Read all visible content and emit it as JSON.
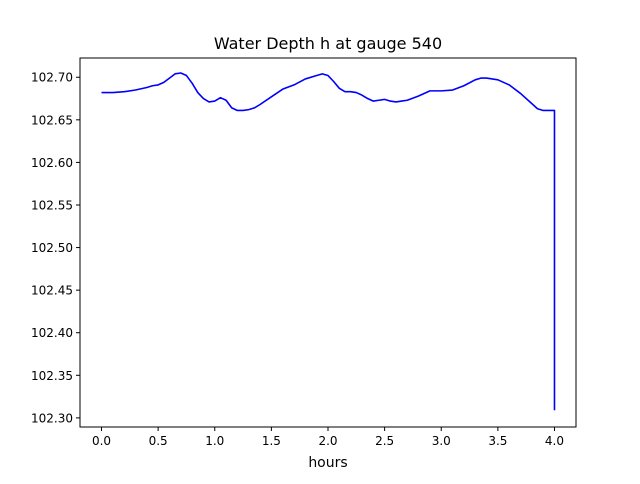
{
  "chart_data": {
    "type": "line",
    "title": "Water Depth h at gauge 540",
    "xlabel": "hours",
    "ylabel": "",
    "xlim": [
      -0.19,
      4.19
    ],
    "ylim": [
      102.2893,
      102.7226
    ],
    "x_ticks": [
      {
        "value": 0.0,
        "label": "0.0"
      },
      {
        "value": 0.5,
        "label": "0.5"
      },
      {
        "value": 1.0,
        "label": "1.0"
      },
      {
        "value": 1.5,
        "label": "1.5"
      },
      {
        "value": 2.0,
        "label": "2.0"
      },
      {
        "value": 2.5,
        "label": "2.5"
      },
      {
        "value": 3.0,
        "label": "3.0"
      },
      {
        "value": 3.5,
        "label": "3.5"
      },
      {
        "value": 4.0,
        "label": "4.0"
      }
    ],
    "y_ticks": [
      {
        "value": 102.3,
        "label": "102.30"
      },
      {
        "value": 102.35,
        "label": "102.35"
      },
      {
        "value": 102.4,
        "label": "102.40"
      },
      {
        "value": 102.45,
        "label": "102.45"
      },
      {
        "value": 102.5,
        "label": "102.50"
      },
      {
        "value": 102.55,
        "label": "102.55"
      },
      {
        "value": 102.6,
        "label": "102.60"
      },
      {
        "value": 102.65,
        "label": "102.65"
      },
      {
        "value": 102.7,
        "label": "102.70"
      }
    ],
    "grid": false,
    "legend": "none",
    "series": [
      {
        "color": "#0000ff",
        "x": [
          0.0,
          0.1,
          0.2,
          0.3,
          0.4,
          0.45,
          0.5,
          0.55,
          0.6,
          0.65,
          0.7,
          0.75,
          0.8,
          0.85,
          0.9,
          0.95,
          1.0,
          1.05,
          1.1,
          1.15,
          1.2,
          1.25,
          1.3,
          1.35,
          1.4,
          1.5,
          1.6,
          1.7,
          1.8,
          1.9,
          1.95,
          2.0,
          2.05,
          2.1,
          2.15,
          2.2,
          2.25,
          2.3,
          2.35,
          2.4,
          2.45,
          2.5,
          2.55,
          2.6,
          2.65,
          2.7,
          2.8,
          2.9,
          3.0,
          3.1,
          3.2,
          3.3,
          3.35,
          3.4,
          3.5,
          3.6,
          3.7,
          3.8,
          3.85,
          3.9,
          3.95,
          4.0,
          4.0
        ],
        "y": [
          102.682,
          102.682,
          102.683,
          102.685,
          102.688,
          102.69,
          102.691,
          102.694,
          102.699,
          102.704,
          102.705,
          102.702,
          102.693,
          102.682,
          102.675,
          102.671,
          102.672,
          102.676,
          102.673,
          102.664,
          102.661,
          102.661,
          102.662,
          102.664,
          102.668,
          102.677,
          102.686,
          102.691,
          102.698,
          102.702,
          102.704,
          102.702,
          102.695,
          102.687,
          102.683,
          102.683,
          102.682,
          102.679,
          102.675,
          102.672,
          102.673,
          102.674,
          102.672,
          102.671,
          102.672,
          102.673,
          102.678,
          102.684,
          102.684,
          102.685,
          102.69,
          102.697,
          102.699,
          102.699,
          102.697,
          102.691,
          102.681,
          102.669,
          102.663,
          102.661,
          102.661,
          102.661,
          102.309
        ]
      }
    ]
  }
}
